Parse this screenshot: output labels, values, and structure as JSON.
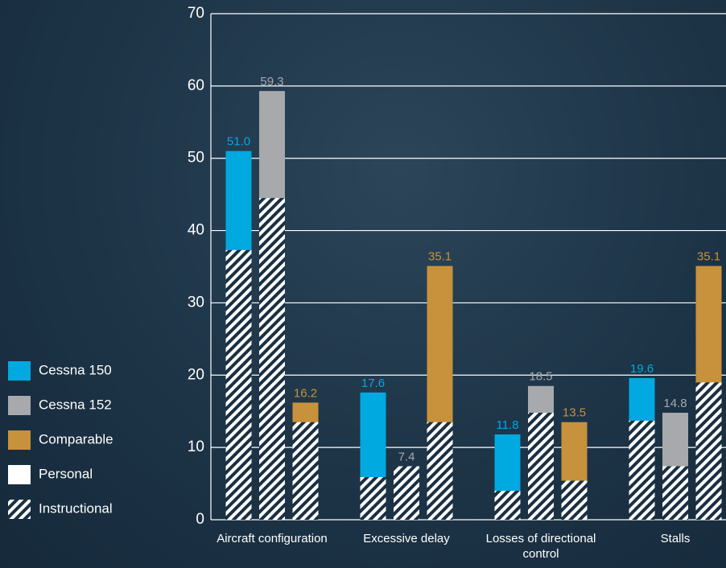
{
  "chart_data": {
    "type": "bar",
    "categories": [
      "Aircraft configuration",
      "Excessive delay",
      "Losses of directional control",
      "Stalls"
    ],
    "series": [
      {
        "name": "Cessna 150",
        "color": "#00a9e0",
        "values": [
          51.0,
          17.6,
          11.8,
          19.6
        ],
        "value_labels": [
          "51.0",
          "17.6",
          "11.8",
          "19.6"
        ],
        "instructional": [
          37.3,
          5.9,
          4.0,
          13.7
        ]
      },
      {
        "name": "Cessna 152",
        "color": "#a7a9ac",
        "values": [
          59.3,
          7.4,
          18.5,
          14.8
        ],
        "value_labels": [
          "59.3",
          "7.4",
          "18.5",
          "14.8"
        ],
        "instructional": [
          44.5,
          7.4,
          14.8,
          7.4
        ]
      },
      {
        "name": "Comparable",
        "color": "#c8913c",
        "values": [
          16.2,
          35.1,
          13.5,
          35.1
        ],
        "value_labels": [
          "16.2",
          "35.1",
          "13.5",
          "35.1"
        ],
        "instructional": [
          13.5,
          13.5,
          5.4,
          19.0
        ]
      }
    ],
    "personal_label": "Personal",
    "instructional_label": "Instructional",
    "ylim": [
      0,
      70
    ],
    "yticks": [
      0,
      10,
      20,
      30,
      40,
      50,
      60,
      70
    ],
    "grid": true,
    "legend": "left"
  }
}
